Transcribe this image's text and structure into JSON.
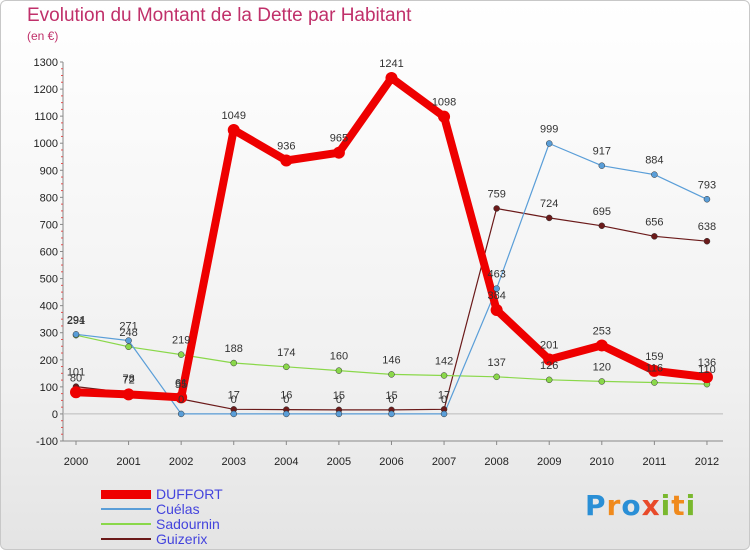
{
  "title": "Evolution du Montant de la Dette par Habitant",
  "subtitle": "(en €)",
  "logo": {
    "text": "Proxiti",
    "letters": [
      {
        "ch": "P",
        "color": "#2a8fd6"
      },
      {
        "ch": "r",
        "color": "#f08a1c"
      },
      {
        "ch": "o",
        "color": "#2a8fd6"
      },
      {
        "ch": "x",
        "color": "#e84a2a"
      },
      {
        "ch": "i",
        "color": "#7ab82e"
      },
      {
        "ch": "t",
        "color": "#f08a1c"
      },
      {
        "ch": "i",
        "color": "#7ab82e"
      }
    ]
  },
  "chart_data": {
    "type": "line",
    "title": "Evolution du Montant de la Dette par Habitant",
    "subtitle": "(en €)",
    "x": [
      "2000",
      "2001",
      "2002",
      "2003",
      "2004",
      "2005",
      "2006",
      "2007",
      "2008",
      "2009",
      "2010",
      "2011",
      "2012"
    ],
    "ylim": [
      -100,
      1300
    ],
    "yticks": [
      -100,
      0,
      100,
      200,
      300,
      400,
      500,
      600,
      700,
      800,
      900,
      1000,
      1100,
      1200,
      1300
    ],
    "grid": false,
    "legend_position": "bottom-left",
    "series": [
      {
        "name": "DUFFORT",
        "color": "#ee0000",
        "values": [
          80,
          72,
          61,
          1049,
          936,
          965,
          1241,
          1098,
          384,
          201,
          253,
          159,
          136
        ],
        "labels": [
          "80",
          "72",
          "61",
          "1049",
          "936",
          "965",
          "1241",
          "1098",
          "384",
          "201",
          "253",
          "159",
          "136"
        ]
      },
      {
        "name": "Cuélas",
        "color": "#5a9ed8",
        "values": [
          294,
          271,
          0,
          0,
          0,
          0,
          0,
          0,
          463,
          999,
          917,
          884,
          793
        ],
        "labels": [
          "294",
          "271",
          "0",
          "0",
          "0",
          "0",
          "0",
          "0",
          "463",
          "999",
          "917",
          "884",
          "793"
        ]
      },
      {
        "name": "Sadournin",
        "color": "#8ad84a",
        "values": [
          291,
          248,
          219,
          188,
          174,
          160,
          146,
          142,
          137,
          126,
          120,
          116,
          110
        ],
        "labels": [
          "291",
          "248",
          "219",
          "188",
          "174",
          "160",
          "146",
          "142",
          "137",
          "126",
          "120",
          "116",
          "110"
        ]
      },
      {
        "name": "Guizerix",
        "color": "#6b1a1a",
        "values": [
          101,
          78,
          55,
          17,
          16,
          15,
          15,
          17,
          759,
          724,
          695,
          656,
          638
        ],
        "labels": [
          "101",
          "78",
          "55",
          "17",
          "16",
          "15",
          "15",
          "17",
          "759",
          "724",
          "695",
          "656",
          "638"
        ]
      }
    ]
  }
}
